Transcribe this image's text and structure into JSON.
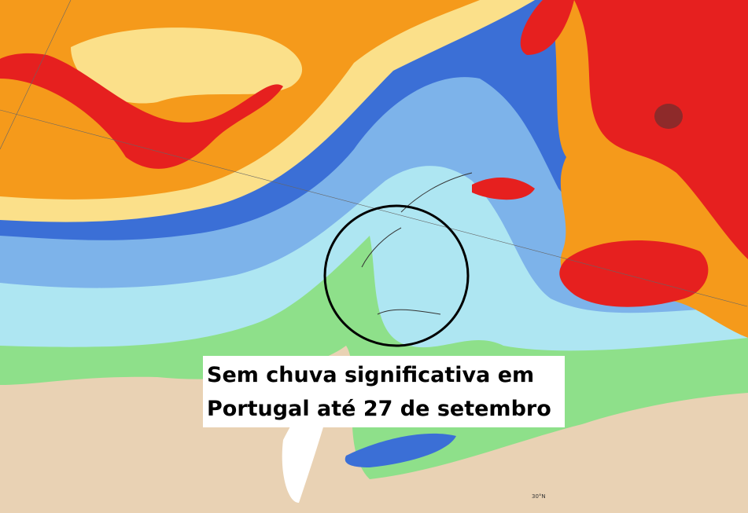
{
  "caption": {
    "lines": [
      "Sem chuva significativa em",
      "Portugal até 27 de setembro"
    ]
  },
  "map_labels": [
    "30°N"
  ]
}
